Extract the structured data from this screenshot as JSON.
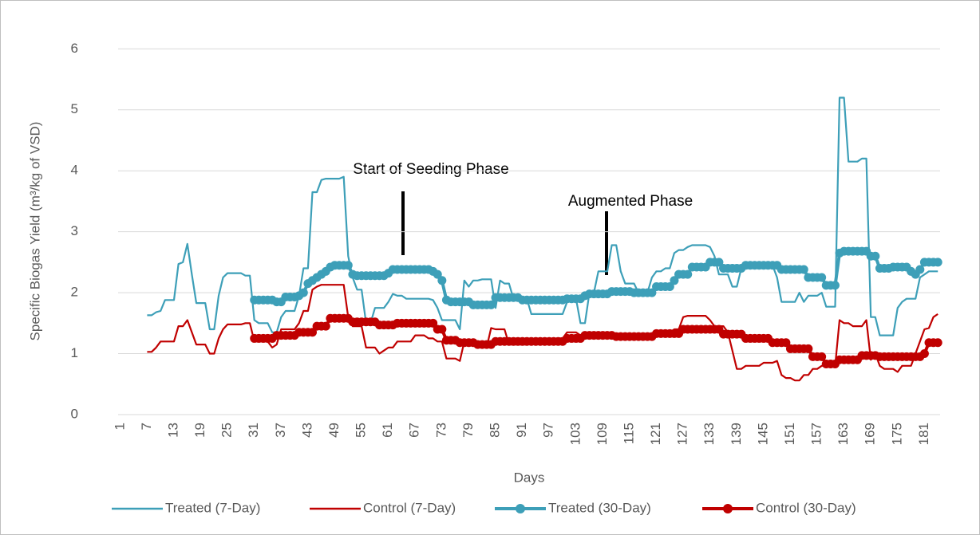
{
  "chart_data": {
    "type": "line",
    "y_label": "Specific Biogas Yield (m³/kg  of VSD)",
    "x_label": "Days",
    "legend": "bottom",
    "grid": true,
    "ylim": [
      0,
      6.2
    ],
    "yticks": [
      0,
      1,
      2,
      3,
      4,
      5,
      6
    ],
    "annotations": [
      "Start of Seeding Phase",
      "Augmented Phase"
    ],
    "categories": [
      1,
      null,
      null,
      null,
      null,
      null,
      7,
      null,
      null,
      null,
      null,
      null,
      13,
      null,
      null,
      null,
      null,
      null,
      19,
      null,
      null,
      null,
      null,
      null,
      25,
      null,
      null,
      null,
      null,
      null,
      31,
      null,
      null,
      null,
      null,
      null,
      37,
      null,
      null,
      null,
      null,
      null,
      43,
      null,
      null,
      null,
      null,
      null,
      49,
      null,
      null,
      null,
      null,
      null,
      55,
      null,
      null,
      null,
      null,
      null,
      61,
      null,
      null,
      null,
      null,
      null,
      67,
      null,
      null,
      null,
      null,
      null,
      73,
      null,
      null,
      null,
      null,
      null,
      79,
      null,
      null,
      null,
      null,
      null,
      85,
      null,
      null,
      null,
      null,
      null,
      91,
      null,
      null,
      null,
      null,
      null,
      97,
      null,
      null,
      null,
      null,
      null,
      103,
      null,
      null,
      null,
      null,
      null,
      109,
      null,
      null,
      null,
      null,
      null,
      115,
      null,
      null,
      null,
      null,
      null,
      121,
      null,
      null,
      null,
      null,
      null,
      127,
      null,
      null,
      null,
      null,
      null,
      133,
      null,
      null,
      null,
      null,
      null,
      139,
      null,
      null,
      null,
      null,
      null,
      145,
      null,
      null,
      null,
      null,
      null,
      151,
      null,
      null,
      null,
      null,
      null,
      157,
      null,
      null,
      null,
      null,
      null,
      163,
      null,
      null,
      null,
      null,
      null,
      169,
      null,
      null,
      null,
      null,
      null,
      175,
      null,
      null,
      null,
      null,
      null,
      181,
      null,
      null,
      null
    ],
    "series": [
      {
        "name": "Treated (7-Day)",
        "color": "#3d9fb8",
        "marker": false,
        "values": [
          null,
          null,
          null,
          null,
          null,
          null,
          1.63,
          1.63,
          1.68,
          1.7,
          1.88,
          1.88,
          1.88,
          2.47,
          2.5,
          2.8,
          2.3,
          1.83,
          1.83,
          1.83,
          1.4,
          1.4,
          1.95,
          2.25,
          2.32,
          2.32,
          2.32,
          2.32,
          2.28,
          2.28,
          1.55,
          1.5,
          1.5,
          1.5,
          1.35,
          1.35,
          1.6,
          1.7,
          1.7,
          1.7,
          1.95,
          2.4,
          2.4,
          3.65,
          3.65,
          3.85,
          3.87,
          3.87,
          3.87,
          3.87,
          3.9,
          2.6,
          2.25,
          2.05,
          2.05,
          1.5,
          1.5,
          1.75,
          1.75,
          1.75,
          1.85,
          1.98,
          1.95,
          1.95,
          1.9,
          1.9,
          1.9,
          1.9,
          1.9,
          1.9,
          1.88,
          1.75,
          1.55,
          1.55,
          1.55,
          1.55,
          1.4,
          2.2,
          2.1,
          2.2,
          2.2,
          2.22,
          2.22,
          2.22,
          1.75,
          2.2,
          2.15,
          2.15,
          1.9,
          1.9,
          1.9,
          1.9,
          1.65,
          1.65,
          1.65,
          1.65,
          1.65,
          1.65,
          1.65,
          1.65,
          1.85,
          1.9,
          1.9,
          1.5,
          1.5,
          2.0,
          2.0,
          2.35,
          2.35,
          2.35,
          2.78,
          2.78,
          2.35,
          2.15,
          2.15,
          2.15,
          2.0,
          2.0,
          2.0,
          2.25,
          2.35,
          2.35,
          2.4,
          2.4,
          2.65,
          2.7,
          2.7,
          2.75,
          2.78,
          2.78,
          2.78,
          2.78,
          2.75,
          2.6,
          2.3,
          2.3,
          2.3,
          2.1,
          2.1,
          2.4,
          2.4,
          2.4,
          2.4,
          2.4,
          2.4,
          2.4,
          2.45,
          2.25,
          1.85,
          1.85,
          1.85,
          1.85,
          2.0,
          1.85,
          1.95,
          1.95,
          1.95,
          2.0,
          1.77,
          1.77,
          1.77,
          5.2,
          5.2,
          4.15,
          4.15,
          4.15,
          4.2,
          4.2,
          1.6,
          1.6,
          1.3,
          1.3,
          1.3,
          1.3,
          1.75,
          1.85,
          1.9,
          1.9,
          1.9,
          2.25,
          2.3,
          2.35,
          2.35,
          2.35
        ]
      },
      {
        "name": "Control (7-Day)",
        "color": "#c00000",
        "marker": false,
        "values": [
          null,
          null,
          null,
          null,
          null,
          null,
          1.03,
          1.03,
          1.1,
          1.2,
          1.2,
          1.2,
          1.2,
          1.45,
          1.45,
          1.55,
          1.35,
          1.15,
          1.15,
          1.15,
          1.0,
          1.0,
          1.25,
          1.4,
          1.48,
          1.48,
          1.48,
          1.48,
          1.5,
          1.5,
          1.2,
          1.2,
          1.2,
          1.2,
          1.1,
          1.15,
          1.4,
          1.4,
          1.4,
          1.4,
          1.5,
          1.7,
          1.7,
          2.05,
          2.1,
          2.13,
          2.13,
          2.13,
          2.13,
          2.13,
          2.13,
          1.6,
          1.45,
          1.45,
          1.45,
          1.1,
          1.1,
          1.1,
          1.0,
          1.05,
          1.1,
          1.1,
          1.2,
          1.2,
          1.2,
          1.2,
          1.3,
          1.3,
          1.3,
          1.25,
          1.25,
          1.2,
          1.2,
          0.92,
          0.92,
          0.92,
          0.88,
          1.2,
          1.15,
          1.15,
          1.15,
          1.15,
          1.1,
          1.42,
          1.4,
          1.4,
          1.4,
          1.15,
          1.15,
          1.15,
          1.15,
          1.15,
          1.2,
          1.2,
          1.2,
          1.2,
          1.2,
          1.2,
          1.25,
          1.25,
          1.35,
          1.35,
          1.35,
          1.3,
          1.3,
          1.3,
          1.3,
          1.3,
          1.3,
          1.3,
          1.35,
          1.3,
          1.3,
          1.3,
          1.3,
          1.3,
          1.3,
          1.3,
          1.3,
          1.3,
          1.35,
          1.35,
          1.35,
          1.35,
          1.4,
          1.4,
          1.6,
          1.62,
          1.62,
          1.62,
          1.62,
          1.62,
          1.55,
          1.45,
          1.45,
          1.45,
          1.35,
          1.05,
          0.75,
          0.75,
          0.8,
          0.8,
          0.8,
          0.8,
          0.85,
          0.85,
          0.85,
          0.88,
          0.65,
          0.6,
          0.6,
          0.56,
          0.56,
          0.65,
          0.65,
          0.75,
          0.75,
          0.8,
          0.8,
          0.8,
          0.8,
          1.55,
          1.5,
          1.5,
          1.45,
          1.45,
          1.45,
          1.55,
          0.9,
          1.0,
          0.8,
          0.75,
          0.75,
          0.75,
          0.7,
          0.8,
          0.8,
          0.8,
          1.0,
          1.2,
          1.4,
          1.42,
          1.6,
          1.65
        ]
      },
      {
        "name": "Treated (30-Day)",
        "color": "#3d9fb8",
        "marker": true,
        "values": [
          null,
          null,
          null,
          null,
          null,
          null,
          null,
          null,
          null,
          null,
          null,
          null,
          null,
          null,
          null,
          null,
          null,
          null,
          null,
          null,
          null,
          null,
          null,
          null,
          null,
          null,
          null,
          null,
          null,
          null,
          1.88,
          1.88,
          1.88,
          1.88,
          1.88,
          1.85,
          1.85,
          1.93,
          1.93,
          1.93,
          1.95,
          2.0,
          2.15,
          2.2,
          2.25,
          2.3,
          2.35,
          2.42,
          2.45,
          2.45,
          2.45,
          2.45,
          2.3,
          2.28,
          2.28,
          2.28,
          2.28,
          2.28,
          2.28,
          2.28,
          2.32,
          2.38,
          2.38,
          2.38,
          2.38,
          2.38,
          2.38,
          2.38,
          2.38,
          2.38,
          2.35,
          2.3,
          2.2,
          1.88,
          1.85,
          1.85,
          1.85,
          1.85,
          1.85,
          1.8,
          1.8,
          1.8,
          1.8,
          1.8,
          1.92,
          1.92,
          1.92,
          1.92,
          1.92,
          1.92,
          1.88,
          1.88,
          1.88,
          1.88,
          1.88,
          1.88,
          1.88,
          1.88,
          1.88,
          1.88,
          1.9,
          1.9,
          1.9,
          1.9,
          1.95,
          1.98,
          1.98,
          1.98,
          1.98,
          1.98,
          2.02,
          2.02,
          2.02,
          2.02,
          2.02,
          2.0,
          2.0,
          2.0,
          2.0,
          2.0,
          2.1,
          2.1,
          2.1,
          2.1,
          2.2,
          2.3,
          2.3,
          2.3,
          2.42,
          2.42,
          2.42,
          2.42,
          2.5,
          2.5,
          2.5,
          2.4,
          2.4,
          2.4,
          2.4,
          2.4,
          2.45,
          2.45,
          2.45,
          2.45,
          2.45,
          2.45,
          2.45,
          2.45,
          2.38,
          2.38,
          2.38,
          2.38,
          2.38,
          2.38,
          2.25,
          2.25,
          2.25,
          2.25,
          2.12,
          2.12,
          2.12,
          2.65,
          2.68,
          2.68,
          2.68,
          2.68,
          2.68,
          2.68,
          2.6,
          2.6,
          2.4,
          2.4,
          2.4,
          2.42,
          2.42,
          2.42,
          2.42,
          2.35,
          2.3,
          2.38,
          2.5,
          2.5,
          2.5,
          2.5
        ]
      },
      {
        "name": "Control (30-Day)",
        "color": "#c00000",
        "marker": true,
        "values": [
          null,
          null,
          null,
          null,
          null,
          null,
          null,
          null,
          null,
          null,
          null,
          null,
          null,
          null,
          null,
          null,
          null,
          null,
          null,
          null,
          null,
          null,
          null,
          null,
          null,
          null,
          null,
          null,
          null,
          null,
          1.25,
          1.25,
          1.25,
          1.25,
          1.25,
          1.3,
          1.3,
          1.3,
          1.3,
          1.3,
          1.35,
          1.35,
          1.35,
          1.35,
          1.45,
          1.45,
          1.45,
          1.58,
          1.58,
          1.58,
          1.58,
          1.58,
          1.52,
          1.52,
          1.52,
          1.52,
          1.52,
          1.52,
          1.47,
          1.47,
          1.47,
          1.47,
          1.5,
          1.5,
          1.5,
          1.5,
          1.5,
          1.5,
          1.5,
          1.5,
          1.5,
          1.4,
          1.4,
          1.22,
          1.22,
          1.22,
          1.18,
          1.18,
          1.18,
          1.18,
          1.15,
          1.15,
          1.15,
          1.15,
          1.2,
          1.2,
          1.2,
          1.2,
          1.2,
          1.2,
          1.2,
          1.2,
          1.2,
          1.2,
          1.2,
          1.2,
          1.2,
          1.2,
          1.2,
          1.2,
          1.25,
          1.25,
          1.25,
          1.25,
          1.3,
          1.3,
          1.3,
          1.3,
          1.3,
          1.3,
          1.3,
          1.28,
          1.28,
          1.28,
          1.28,
          1.28,
          1.28,
          1.28,
          1.28,
          1.28,
          1.33,
          1.33,
          1.33,
          1.33,
          1.33,
          1.33,
          1.4,
          1.4,
          1.4,
          1.4,
          1.4,
          1.4,
          1.4,
          1.4,
          1.4,
          1.32,
          1.32,
          1.32,
          1.32,
          1.32,
          1.25,
          1.25,
          1.25,
          1.25,
          1.25,
          1.25,
          1.18,
          1.18,
          1.18,
          1.18,
          1.08,
          1.08,
          1.08,
          1.08,
          1.08,
          0.95,
          0.95,
          0.95,
          0.83,
          0.83,
          0.83,
          0.9,
          0.9,
          0.9,
          0.9,
          0.9,
          0.97,
          0.97,
          0.97,
          0.97,
          0.95,
          0.95,
          0.95,
          0.95,
          0.95,
          0.95,
          0.95,
          0.95,
          0.95,
          0.95,
          1.0,
          1.18,
          1.18,
          1.18
        ]
      }
    ]
  }
}
